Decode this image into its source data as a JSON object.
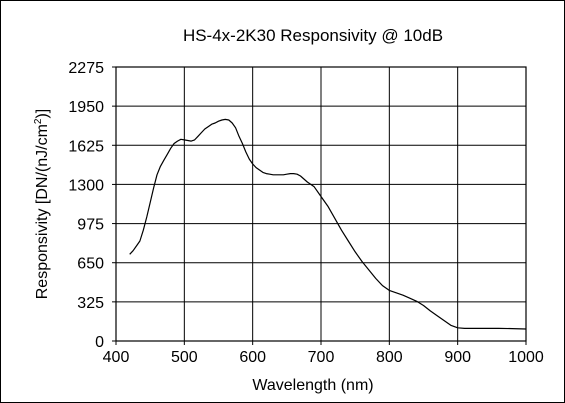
{
  "chart_data": {
    "type": "line",
    "title": "HS-4x-2K30 Responsivity @ 10dB",
    "xlabel": "Wavelength (nm)",
    "ylabel_main": "Responsivity [DN/(nJ/cm",
    "ylabel_sup": "2",
    "ylabel_end": ")]",
    "xlim": [
      400,
      1000
    ],
    "ylim": [
      0,
      2275
    ],
    "x_ticks": [
      400,
      500,
      600,
      700,
      800,
      900,
      1000
    ],
    "y_ticks": [
      0,
      325,
      650,
      975,
      1300,
      1625,
      1950,
      2275
    ],
    "grid": true,
    "series": [
      {
        "color": "#000000",
        "x": [
          420,
          425,
          430,
          435,
          440,
          445,
          450,
          455,
          460,
          465,
          470,
          475,
          480,
          485,
          490,
          495,
          500,
          505,
          510,
          515,
          520,
          525,
          530,
          535,
          540,
          545,
          550,
          555,
          560,
          565,
          570,
          575,
          580,
          585,
          590,
          595,
          600,
          605,
          610,
          615,
          620,
          625,
          630,
          635,
          640,
          645,
          650,
          655,
          660,
          665,
          670,
          675,
          680,
          685,
          690,
          700,
          710,
          720,
          730,
          740,
          750,
          760,
          770,
          780,
          790,
          800,
          810,
          820,
          830,
          840,
          850,
          860,
          870,
          880,
          890,
          900,
          910,
          920,
          940,
          960,
          980,
          1000
        ],
        "y": [
          720,
          750,
          790,
          830,
          920,
          1030,
          1150,
          1270,
          1380,
          1450,
          1500,
          1550,
          1600,
          1640,
          1660,
          1675,
          1670,
          1665,
          1660,
          1670,
          1700,
          1730,
          1760,
          1780,
          1800,
          1810,
          1825,
          1835,
          1840,
          1835,
          1810,
          1770,
          1700,
          1640,
          1570,
          1510,
          1470,
          1440,
          1420,
          1400,
          1390,
          1385,
          1380,
          1380,
          1380,
          1380,
          1385,
          1390,
          1390,
          1385,
          1370,
          1345,
          1320,
          1300,
          1280,
          1200,
          1120,
          1020,
          920,
          830,
          740,
          660,
          590,
          520,
          460,
          420,
          400,
          380,
          355,
          330,
          295,
          250,
          210,
          170,
          130,
          110,
          105,
          105,
          105,
          105,
          103,
          100
        ]
      }
    ]
  }
}
